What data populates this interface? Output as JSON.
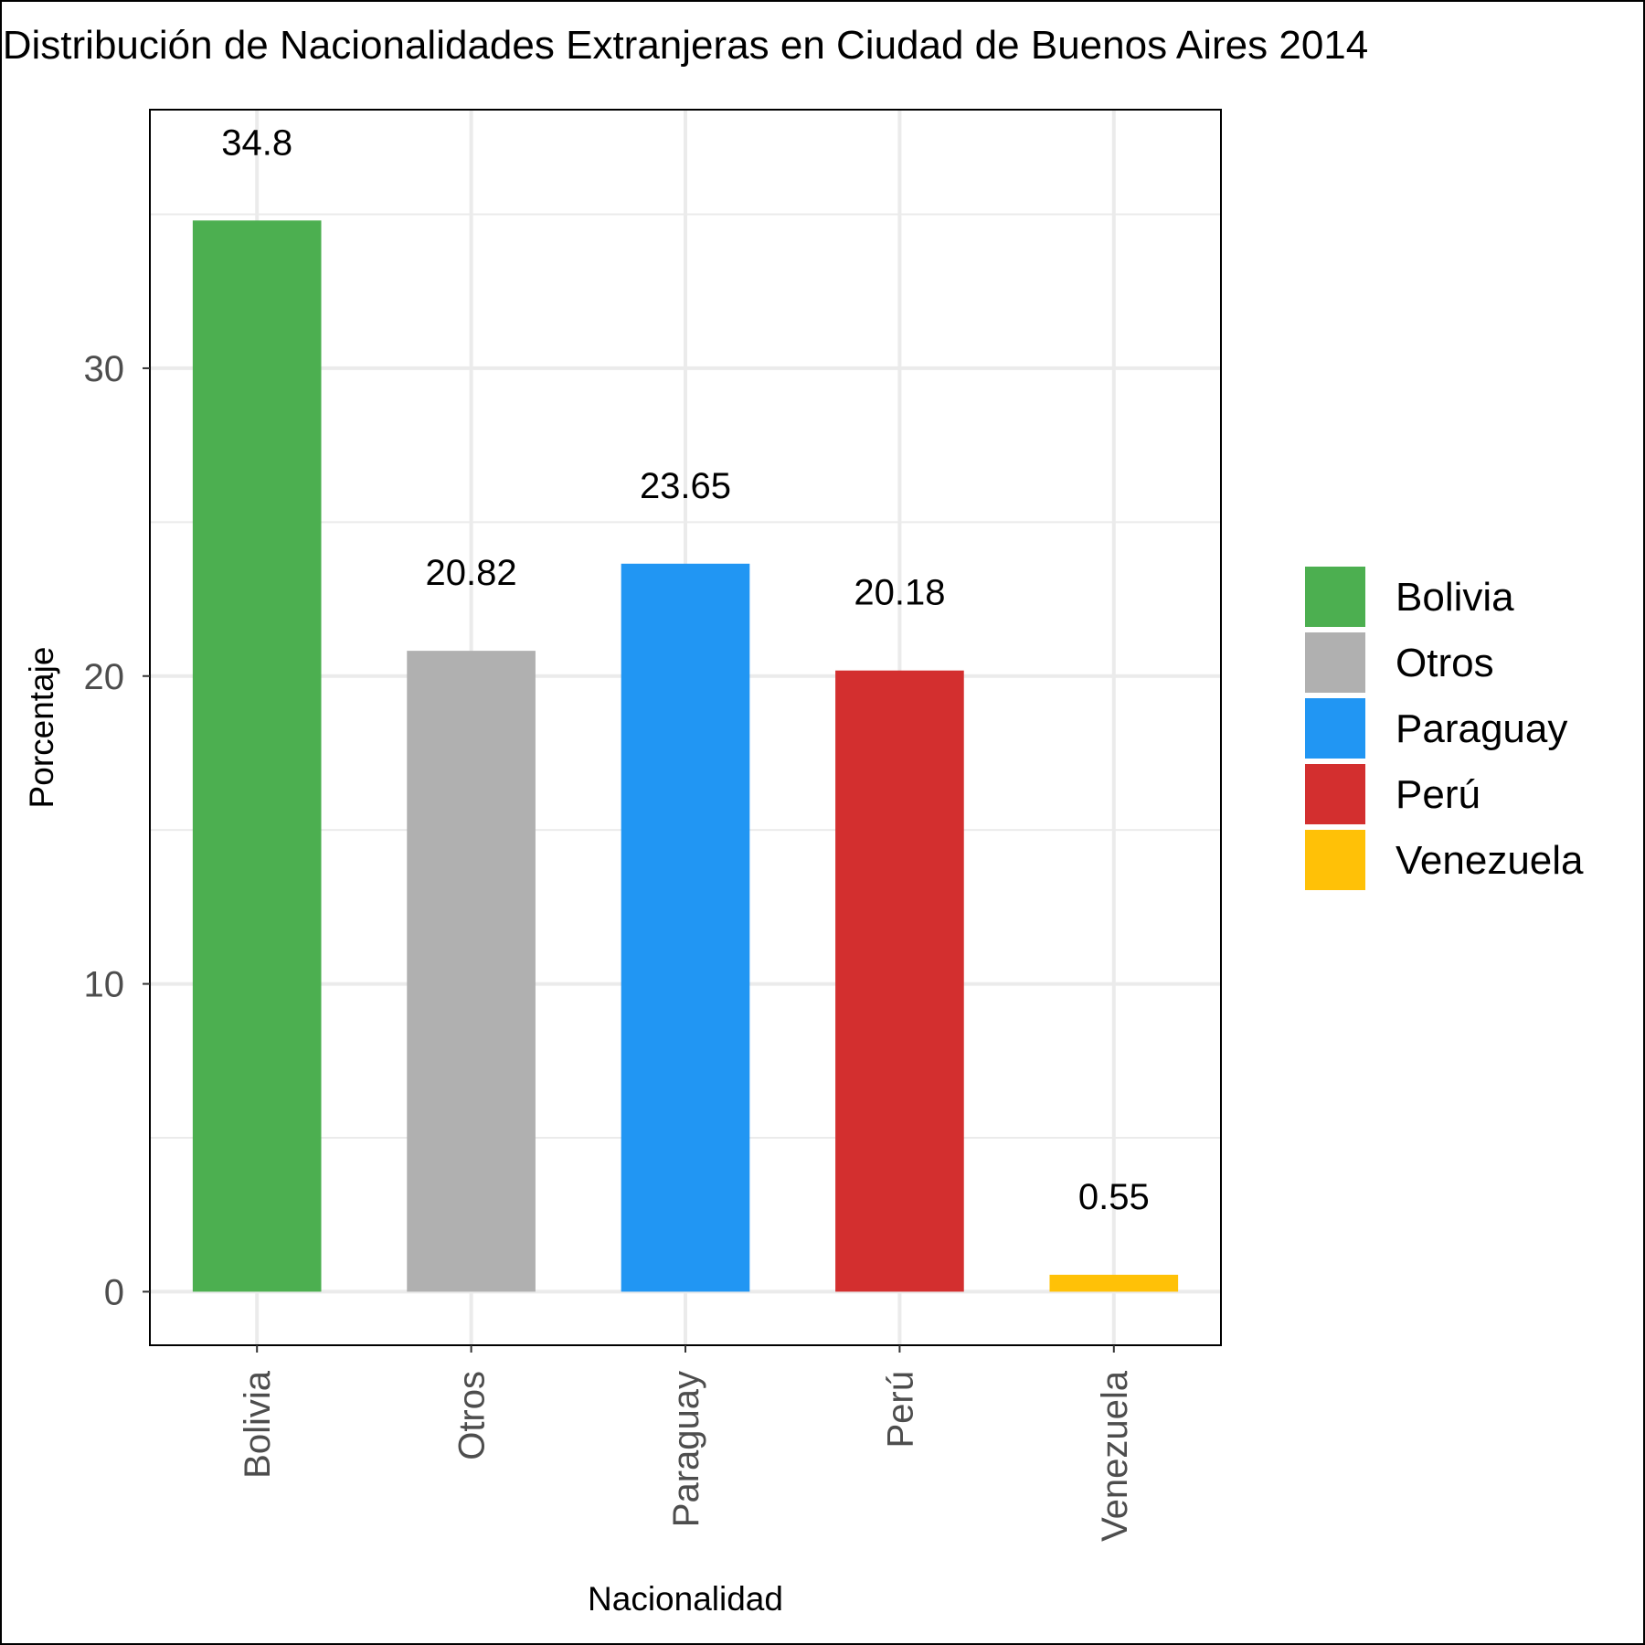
{
  "chart_data": {
    "type": "bar",
    "title": "Distribución de Nacionalidades Extranjeras en Ciudad de Buenos Aires 2014",
    "xlabel": "Nacionalidad",
    "ylabel": "Porcentaje",
    "categories": [
      "Bolivia",
      "Otros",
      "Paraguay",
      "Perú",
      "Venezuela"
    ],
    "values": [
      34.8,
      20.82,
      23.65,
      20.18,
      0.55
    ],
    "data_labels": [
      "34.8",
      "20.82",
      "23.65",
      "20.18",
      "0.55"
    ],
    "colors": [
      "#4caf50",
      "#b0b0b0",
      "#2196f3",
      "#d32f2f",
      "#ffc107"
    ],
    "ylim": [
      -1.74,
      38.4
    ],
    "y_ticks": [
      0,
      10,
      20,
      30
    ],
    "y_tick_labels": [
      "0",
      "10",
      "20",
      "30"
    ],
    "y_minor_ticks": [
      5,
      15,
      25,
      35
    ],
    "grid": true,
    "legend": {
      "position": "right",
      "items": [
        "Bolivia",
        "Otros",
        "Paraguay",
        "Perú",
        "Venezuela"
      ]
    }
  }
}
